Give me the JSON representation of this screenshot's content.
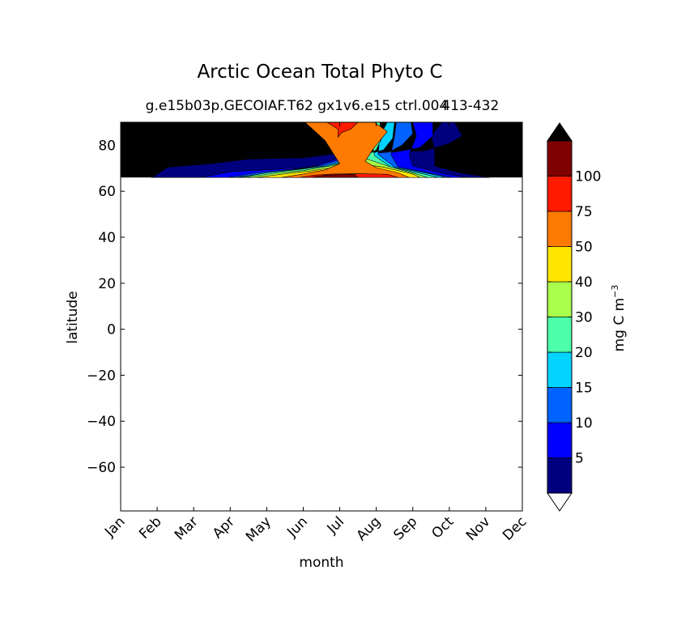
{
  "chart_data": {
    "type": "contourf",
    "title": "Arctic Ocean Total Phyto C",
    "subtitle": "g.e15b03p.GECOIAF.T62 gx1v6.e15 ctrl.004",
    "subtitle_overlap": "413-432",
    "xlabel": "month",
    "ylabel": "latitude",
    "x_categories": [
      "Jan",
      "Feb",
      "Mar",
      "Apr",
      "May",
      "Jun",
      "Jul",
      "Aug",
      "Sep",
      "Oct",
      "Nov",
      "Dec"
    ],
    "ylim": [
      -79,
      90
    ],
    "y_ticks": [
      80,
      60,
      40,
      20,
      0,
      -20,
      -40,
      -60
    ],
    "y_tick_labels": [
      "80",
      "60",
      "40",
      "20",
      "0",
      "−20",
      "−40",
      "−60"
    ],
    "data_lat_min": 66,
    "no_data_color": "#000000",
    "colorbar": {
      "label": "mg C m",
      "label_superscript": "−3",
      "levels": [
        0,
        5,
        10,
        15,
        20,
        30,
        40,
        50,
        75,
        100
      ],
      "tick_labels": [
        "5",
        "10",
        "15",
        "20",
        "30",
        "40",
        "50",
        "75",
        "100"
      ],
      "colors": [
        "#00007f",
        "#0000ff",
        "#0063ff",
        "#00d4ff",
        "#4dffaa",
        "#aaff4d",
        "#ffe600",
        "#ff7a00",
        "#ff1a00",
        "#7f0000"
      ],
      "extend": "both",
      "under_color": "#ffffff",
      "over_color": "#000000"
    },
    "field_contours": [
      {
        "level_index": 0,
        "month_lat": [
          [
            0.85,
            66
          ],
          [
            1.3,
            70.5
          ],
          [
            2.5,
            72
          ],
          [
            3.5,
            74
          ],
          [
            5,
            74.5
          ],
          [
            6.2,
            77
          ],
          [
            8.3,
            77.5
          ],
          [
            9,
            80.8
          ],
          [
            9.35,
            84
          ],
          [
            9.15,
            90
          ],
          [
            8.8,
            90
          ],
          [
            8.5,
            84
          ],
          [
            8.6,
            78
          ],
          [
            8.6,
            71
          ],
          [
            9.3,
            68
          ],
          [
            10.1,
            66
          ]
        ]
      },
      {
        "level_index": 1,
        "month_lat": [
          [
            2.2,
            66
          ],
          [
            3,
            68.5
          ],
          [
            4.2,
            69.5
          ],
          [
            5.2,
            70.5
          ],
          [
            6.3,
            76
          ],
          [
            7.5,
            77
          ],
          [
            8.2,
            79
          ],
          [
            8.55,
            84
          ],
          [
            8.55,
            90
          ],
          [
            8.0,
            90
          ],
          [
            8.1,
            84
          ],
          [
            7.9,
            76
          ],
          [
            8.0,
            71
          ],
          [
            8.9,
            67.5
          ],
          [
            9.5,
            66
          ]
        ]
      },
      {
        "level_index": 2,
        "month_lat": [
          [
            2.95,
            66
          ],
          [
            3.7,
            68
          ],
          [
            4.7,
            69.5
          ],
          [
            5.4,
            71
          ],
          [
            6.5,
            76
          ],
          [
            7.35,
            77
          ],
          [
            7.7,
            80
          ],
          [
            8.0,
            85
          ],
          [
            7.95,
            90
          ],
          [
            7.55,
            90
          ],
          [
            7.5,
            84
          ],
          [
            7.4,
            76
          ],
          [
            7.6,
            70.5
          ],
          [
            8.6,
            67.5
          ],
          [
            9.05,
            66
          ]
        ]
      },
      {
        "level_index": 3,
        "month_lat": [
          [
            3.15,
            66
          ],
          [
            3.8,
            67.5
          ],
          [
            4.8,
            69.5
          ],
          [
            5.55,
            71
          ],
          [
            6.55,
            75
          ],
          [
            7.2,
            78
          ],
          [
            7.45,
            83
          ],
          [
            7.5,
            90
          ],
          [
            7.3,
            90
          ],
          [
            7.1,
            84
          ],
          [
            7.05,
            76
          ],
          [
            7.5,
            70.5
          ],
          [
            8.5,
            67.5
          ],
          [
            8.9,
            66
          ]
        ]
      },
      {
        "level_index": 4,
        "month_lat": [
          [
            3.25,
            66
          ],
          [
            4.0,
            68
          ],
          [
            4.9,
            69.5
          ],
          [
            5.65,
            71
          ],
          [
            6.6,
            74.5
          ],
          [
            7.0,
            78
          ],
          [
            7.15,
            83
          ],
          [
            7.1,
            90
          ],
          [
            6.9,
            90
          ],
          [
            6.85,
            84
          ],
          [
            6.95,
            75.5
          ],
          [
            7.4,
            70.5
          ],
          [
            8.3,
            67.5
          ],
          [
            8.7,
            66
          ]
        ]
      },
      {
        "level_index": 5,
        "month_lat": [
          [
            3.4,
            66
          ],
          [
            4.3,
            68
          ],
          [
            5.0,
            69
          ],
          [
            5.75,
            71
          ],
          [
            6.5,
            74
          ],
          [
            6.75,
            80
          ],
          [
            6.75,
            90
          ],
          [
            6.55,
            90
          ],
          [
            6.55,
            82
          ],
          [
            6.75,
            74
          ],
          [
            7.4,
            70.5
          ],
          [
            8.1,
            67.5
          ],
          [
            8.4,
            66
          ]
        ]
      },
      {
        "level_index": 6,
        "month_lat": [
          [
            3.7,
            66
          ],
          [
            4.6,
            67.8
          ],
          [
            5.2,
            68.8
          ],
          [
            5.8,
            70.3
          ],
          [
            6.2,
            74
          ],
          [
            6.3,
            80
          ],
          [
            6.35,
            90
          ],
          [
            5.95,
            90
          ],
          [
            5.95,
            82
          ],
          [
            6.2,
            75
          ],
          [
            6.5,
            72
          ],
          [
            7.2,
            70.5
          ],
          [
            8.0,
            67.5
          ],
          [
            8.2,
            66
          ]
        ]
      },
      {
        "level_index": 7,
        "month_lat": [
          [
            4.4,
            66
          ],
          [
            5.0,
            67.5
          ],
          [
            5.6,
            69.3
          ],
          [
            6.0,
            72
          ],
          [
            5.6,
            82
          ],
          [
            5.05,
            90
          ],
          [
            6.95,
            90
          ],
          [
            7.3,
            86
          ],
          [
            6.9,
            78
          ],
          [
            6.7,
            73
          ],
          [
            7.0,
            70.3
          ],
          [
            7.6,
            68
          ],
          [
            7.9,
            66
          ]
        ]
      },
      {
        "level_index": 8,
        "month_lat": [
          [
            4.9,
            66
          ],
          [
            5.3,
            67
          ],
          [
            5.8,
            67.5
          ],
          [
            6.5,
            67.6
          ],
          [
            7.3,
            67.4
          ],
          [
            7.6,
            66
          ]
        ]
      },
      {
        "level_index": 8,
        "month_lat": [
          [
            5.65,
            90
          ],
          [
            5.95,
            87
          ],
          [
            5.95,
            83.5
          ],
          [
            6.05,
            85.5
          ],
          [
            6.3,
            87
          ],
          [
            6.5,
            90
          ]
        ]
      },
      {
        "level_index": 9,
        "month_lat": [
          [
            5.2,
            66
          ],
          [
            5.6,
            67
          ],
          [
            6.4,
            67.4
          ],
          [
            6.5,
            66
          ]
        ]
      }
    ]
  }
}
